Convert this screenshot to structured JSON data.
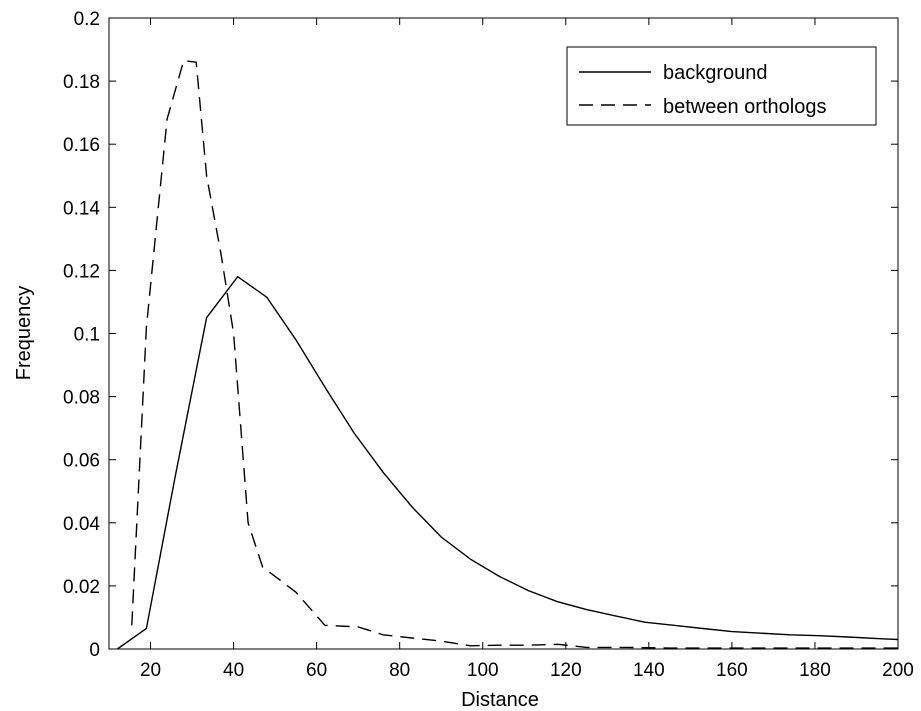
{
  "chart_data": {
    "type": "line",
    "xlabel": "Distance",
    "ylabel": "Frequency",
    "xlim": [
      10,
      200
    ],
    "ylim": [
      0,
      0.2
    ],
    "xticks": [
      20,
      40,
      60,
      80,
      100,
      120,
      140,
      160,
      180,
      200
    ],
    "yticks": [
      0,
      0.02,
      0.04,
      0.06,
      0.08,
      0.1,
      0.12,
      0.14,
      0.16,
      0.18,
      0.2
    ],
    "ytick_labels": [
      "0",
      "0.02",
      "0.04",
      "0.06",
      "0.08",
      "0.1",
      "0.12",
      "0.14",
      "0.16",
      "0.18",
      "0.2"
    ],
    "grid": false,
    "legend_position": "top-right",
    "series": [
      {
        "name": "background",
        "line_style": "solid",
        "color": "#000000",
        "x": [
          12,
          19,
          26,
          33.5,
          41,
          48,
          55,
          62,
          69,
          76,
          83,
          90,
          97,
          104,
          111,
          118,
          125,
          132,
          139,
          146,
          153,
          160,
          167,
          174,
          181,
          188,
          195,
          200
        ],
        "y": [
          0,
          0.0065,
          0.055,
          0.105,
          0.118,
          0.1115,
          0.098,
          0.083,
          0.0685,
          0.056,
          0.045,
          0.0355,
          0.0285,
          0.023,
          0.0185,
          0.015,
          0.0125,
          0.0105,
          0.0085,
          0.0075,
          0.0065,
          0.0055,
          0.005,
          0.0045,
          0.0042,
          0.0038,
          0.0033,
          0.003
        ]
      },
      {
        "name": "between orthologs",
        "line_style": "dashed",
        "color": "#000000",
        "x": [
          15.5,
          19,
          24,
          28,
          31,
          33.5,
          37,
          40,
          43.5,
          47,
          51,
          55,
          62,
          70,
          76,
          83,
          90,
          97,
          104,
          111,
          118,
          125,
          135,
          145,
          160,
          180,
          200
        ],
        "y": [
          0.0075,
          0.102,
          0.168,
          0.1865,
          0.186,
          0.15,
          0.125,
          0.1,
          0.04,
          0.026,
          0.022,
          0.018,
          0.0075,
          0.007,
          0.0045,
          0.0035,
          0.0025,
          0.001,
          0.0012,
          0.0012,
          0.0015,
          0.0005,
          0.0005,
          0.0003,
          0.0003,
          0.0003,
          0.0003
        ]
      }
    ]
  }
}
